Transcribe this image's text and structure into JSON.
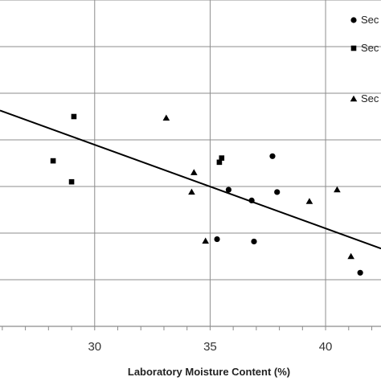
{
  "chart_data": {
    "type": "scatter",
    "title": "",
    "xlabel": "Laboratory Moisture Content (%)",
    "ylabel": "",
    "xlim": [
      25.9,
      42.4
    ],
    "ylim": [
      0,
      7
    ],
    "x_ticks": [
      30,
      35,
      40
    ],
    "x_tick_labels": [
      "30",
      "35",
      "40"
    ],
    "grid": true,
    "legend_position": "top-right",
    "series": [
      {
        "name": "Sec",
        "marker": "circle",
        "points": [
          {
            "x": 37.7,
            "y": 3.65
          },
          {
            "x": 35.8,
            "y": 2.93
          },
          {
            "x": 36.8,
            "y": 2.7
          },
          {
            "x": 37.9,
            "y": 2.88
          },
          {
            "x": 35.3,
            "y": 1.87
          },
          {
            "x": 36.9,
            "y": 1.82
          },
          {
            "x": 41.5,
            "y": 1.15
          }
        ]
      },
      {
        "name": "Sec",
        "marker": "square",
        "points": [
          {
            "x": 29.1,
            "y": 4.5
          },
          {
            "x": 28.2,
            "y": 3.55
          },
          {
            "x": 29.0,
            "y": 3.1
          },
          {
            "x": 35.4,
            "y": 3.52
          },
          {
            "x": 35.5,
            "y": 3.61
          }
        ]
      },
      {
        "name": "Sec",
        "marker": "triangle",
        "points": [
          {
            "x": 33.1,
            "y": 4.47
          },
          {
            "x": 34.3,
            "y": 3.3
          },
          {
            "x": 34.2,
            "y": 2.88
          },
          {
            "x": 34.8,
            "y": 1.83
          },
          {
            "x": 39.3,
            "y": 2.68
          },
          {
            "x": 40.5,
            "y": 2.93
          },
          {
            "x": 41.1,
            "y": 1.5
          }
        ]
      }
    ],
    "trendline": {
      "x": [
        25.9,
        42.4
      ],
      "y": [
        4.63,
        1.67
      ]
    }
  }
}
